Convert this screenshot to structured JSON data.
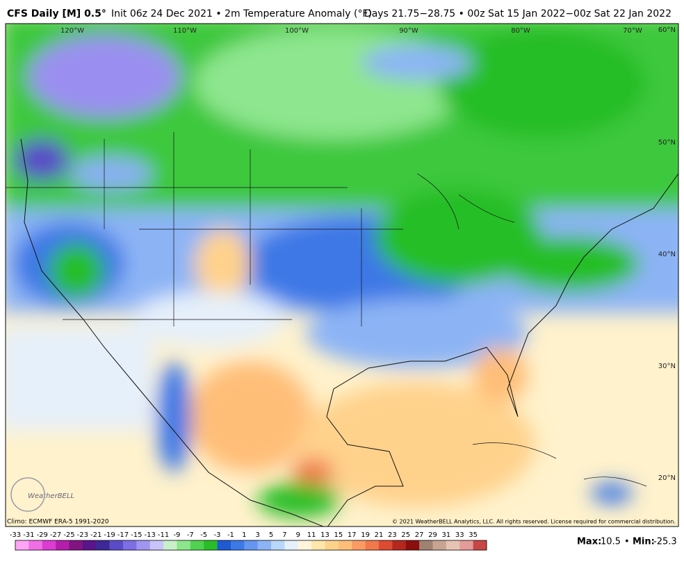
{
  "header": {
    "model": "CFS Daily [M] 0.5°",
    "description": "Init 06z 24 Dec 2021 • 2m Temperature Anomaly (°F)",
    "valid": "Days 21.75−28.75 • 00z Sat 15 Jan 2022−00z Sat 22 Jan 2022"
  },
  "map": {
    "lon_labels": [
      "120°W",
      "110°W",
      "100°W",
      "90°W",
      "80°W",
      "70°W"
    ],
    "lat_labels": [
      "60°N",
      "50°N",
      "40°N",
      "30°N",
      "20°N"
    ],
    "logo": "WeatherBELL"
  },
  "footer": {
    "climo": "Climo: ECMWF ERA-5 1991-2020",
    "copyright": "© 2021 WeatherBELL Analytics, LLC. All rights reserved. License required for commercial distribution."
  },
  "colorbar": {
    "labels": [
      -33,
      -31,
      -29,
      -27,
      -25,
      -23,
      -21,
      -19,
      -17,
      -15,
      -13,
      -11,
      -9,
      -7,
      -5,
      -3,
      -1,
      1,
      3,
      5,
      7,
      9,
      11,
      13,
      15,
      17,
      19,
      21,
      23,
      25,
      27,
      29,
      31,
      33,
      35
    ],
    "colors": [
      "#ffa5f5",
      "#f06ee6",
      "#dc3cd2",
      "#b41eaa",
      "#821482",
      "#5a148c",
      "#3c2896",
      "#5a4bc8",
      "#7d6ee6",
      "#a096f0",
      "#c8c3fa",
      "#c8f0c8",
      "#8ce68c",
      "#50d250",
      "#28be28",
      "#1e5ad2",
      "#3c78e6",
      "#6496f0",
      "#8cb4f5",
      "#b9d7fa",
      "#e6f0fa",
      "#fff5dc",
      "#ffe6aa",
      "#ffd28c",
      "#ffbe78",
      "#fa9b64",
      "#f0784b",
      "#dc4b32",
      "#b4281e",
      "#8c0f0f",
      "#a08270",
      "#c8a591",
      "#e6c3b4",
      "#e69b9b",
      "#c84646"
    ]
  },
  "stats": {
    "max_label": "Max:",
    "max": 10.5,
    "separator": "•",
    "min_label": "Min:",
    "min": -25.3
  }
}
